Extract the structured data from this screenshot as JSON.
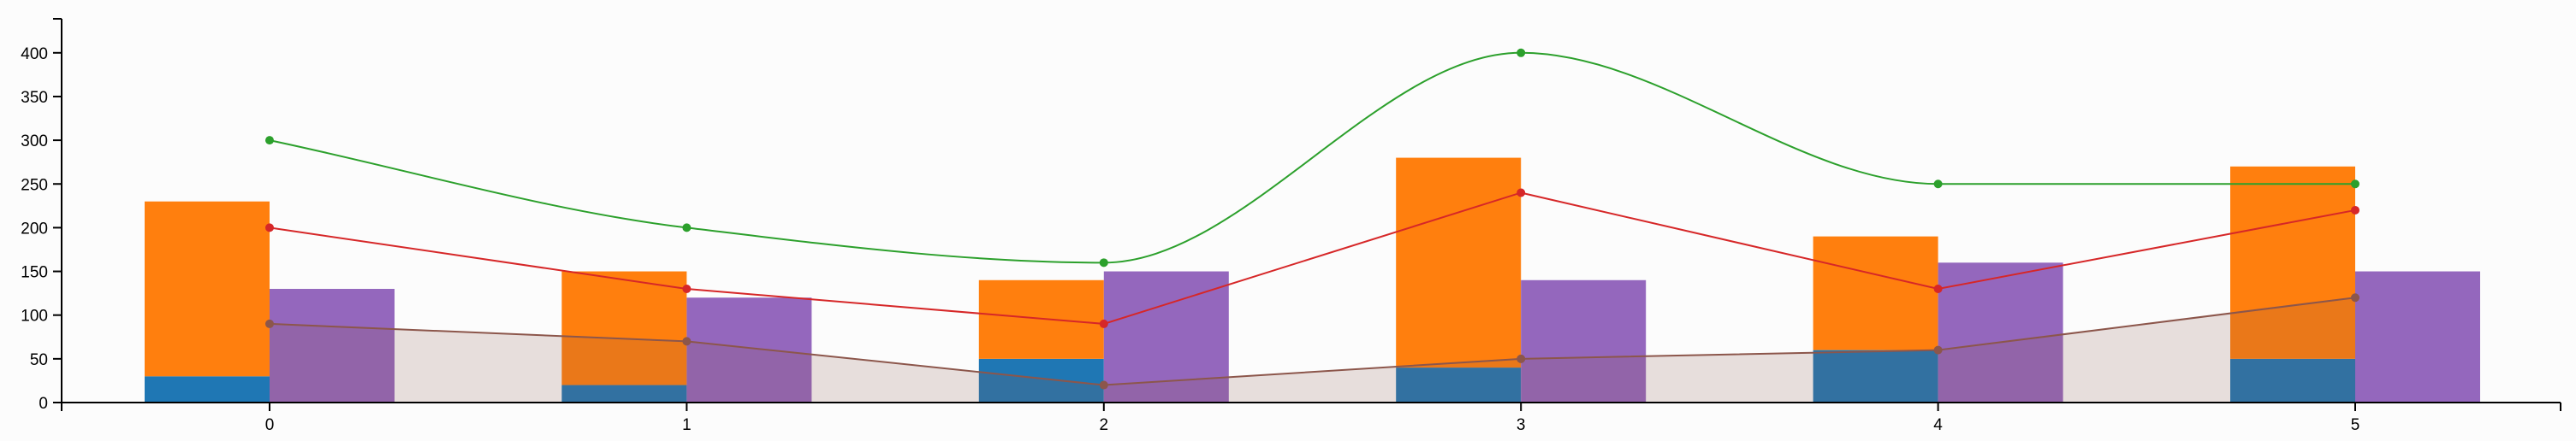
{
  "chart_data": {
    "type": "bar",
    "x": [
      0,
      1,
      2,
      3,
      4,
      5
    ],
    "x_tick_labels": [
      "0",
      "1",
      "2",
      "3",
      "4",
      "5"
    ],
    "y_tick_labels": [
      "0",
      "50",
      "100",
      "150",
      "200",
      "250",
      "300",
      "350",
      "400"
    ],
    "ylim": [
      0,
      440
    ],
    "grid": false,
    "legend": "none",
    "stacked_bars": [
      {
        "color": "#1f77b4",
        "values": [
          30,
          20,
          50,
          40,
          60,
          50
        ]
      },
      {
        "color": "#ff7f0e",
        "values": [
          200,
          130,
          90,
          240,
          130,
          220
        ]
      }
    ],
    "side_bars": {
      "color": "#9467bd",
      "values": [
        130,
        120,
        150,
        140,
        160,
        150
      ]
    },
    "area": {
      "color": "#8c564b",
      "values": [
        90,
        70,
        20,
        50,
        60,
        120
      ]
    },
    "lines": [
      {
        "color": "#d62728",
        "curve": "linear",
        "values": [
          200,
          130,
          90,
          240,
          130,
          220
        ]
      },
      {
        "color": "#2ca02c",
        "curve": "smooth",
        "values": [
          300,
          200,
          160,
          400,
          250,
          250
        ]
      }
    ]
  }
}
